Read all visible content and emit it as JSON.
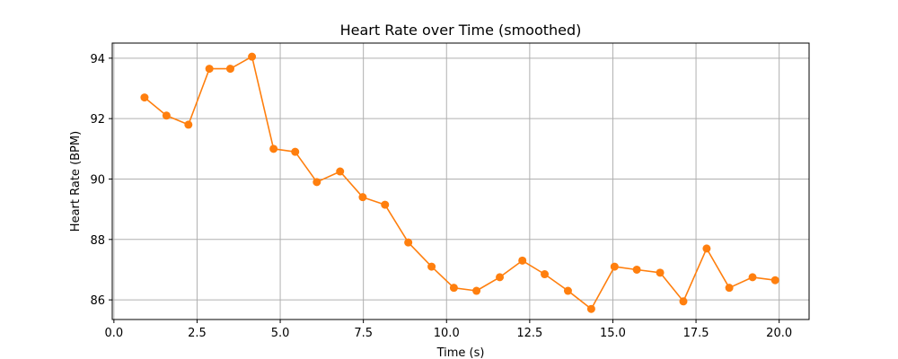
{
  "chart_data": {
    "type": "line",
    "title": "Heart Rate over Time (smoothed)",
    "xlabel": "Time (s)",
    "ylabel": "Heart Rate (BPM)",
    "xlim": [
      -0.05,
      20.9
    ],
    "ylim": [
      85.35,
      94.5
    ],
    "x_ticks": [
      0.0,
      2.5,
      5.0,
      7.5,
      10.0,
      12.5,
      15.0,
      17.5,
      20.0
    ],
    "x_tick_labels": [
      "0.0",
      "2.5",
      "5.0",
      "7.5",
      "10.0",
      "12.5",
      "15.0",
      "17.5",
      "20.0"
    ],
    "y_ticks": [
      86,
      88,
      90,
      92,
      94
    ],
    "y_tick_labels": [
      "86",
      "88",
      "90",
      "92",
      "94"
    ],
    "grid": true,
    "legend": "none",
    "series": [
      {
        "color": "#ff7f0e",
        "marker": "circle",
        "x": [
          0.92,
          1.58,
          2.24,
          2.87,
          3.5,
          4.15,
          4.8,
          5.45,
          6.1,
          6.8,
          7.48,
          8.15,
          8.85,
          9.55,
          10.22,
          10.9,
          11.6,
          12.28,
          12.95,
          13.65,
          14.35,
          15.05,
          15.72,
          16.42,
          17.12,
          17.82,
          18.5,
          19.2,
          19.88
        ],
        "y": [
          92.7,
          92.1,
          91.8,
          93.65,
          93.65,
          94.05,
          91.0,
          90.9,
          89.9,
          90.25,
          89.4,
          89.15,
          87.9,
          87.1,
          86.4,
          86.3,
          86.75,
          87.3,
          86.85,
          86.3,
          85.7,
          87.1,
          87.0,
          86.9,
          85.95,
          87.7,
          86.4,
          86.75,
          86.65
        ]
      }
    ]
  }
}
